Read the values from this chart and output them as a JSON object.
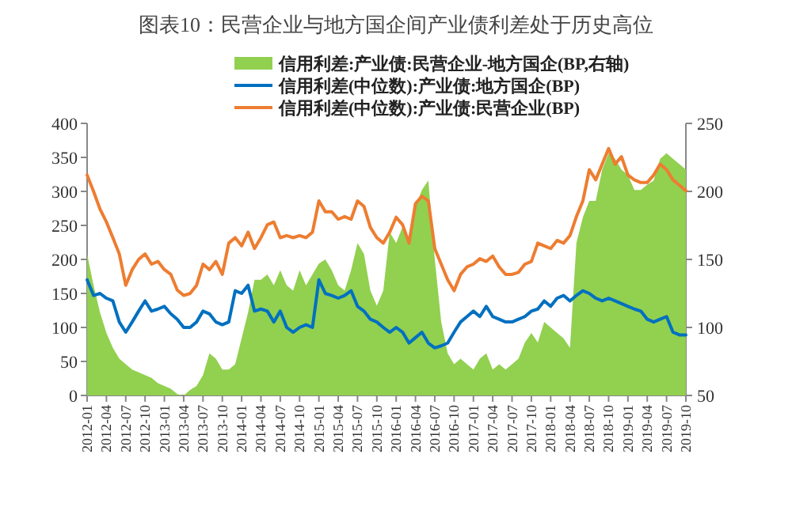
{
  "chart_data": {
    "type": "line",
    "title": "图表10：民营企业与地方国企间产业债利差处于历史高位",
    "categories": [
      "2012-01",
      null,
      null,
      "2012-04",
      null,
      null,
      "2012-07",
      null,
      null,
      "2012-10",
      null,
      null,
      "2013-01",
      null,
      null,
      "2013-04",
      null,
      null,
      "2013-07",
      null,
      null,
      "2013-10",
      null,
      null,
      "2014-01",
      null,
      null,
      "2014-04",
      null,
      null,
      "2014-07",
      null,
      null,
      "2014-10",
      null,
      null,
      "2015-01",
      null,
      null,
      "2015-04",
      null,
      null,
      "2015-07",
      null,
      null,
      "2015-10",
      null,
      null,
      "2016-01",
      null,
      null,
      "2016-04",
      null,
      null,
      "2016-07",
      null,
      null,
      "2016-10",
      null,
      null,
      "2017-01",
      null,
      null,
      "2017-04",
      null,
      null,
      "2017-07",
      null,
      null,
      "2017-10",
      null,
      null,
      "2018-01",
      null,
      null,
      "2018-04",
      null,
      null,
      "2018-07",
      null,
      null,
      "2018-10",
      null,
      null,
      "2019-01",
      null,
      null,
      "2019-04",
      null,
      null,
      "2019-07",
      null,
      null,
      "2019-10"
    ],
    "series": [
      {
        "name": "信用利差:产业债:民营企业-地方国企(BP,右轴)",
        "type": "area",
        "axis": "y2",
        "color": "#92d050",
        "values": [
          154,
          131,
          111,
          96,
          85,
          77,
          73,
          69,
          67,
          65,
          63,
          59,
          57,
          55,
          51,
          50,
          54,
          57,
          65,
          81,
          77,
          69,
          69,
          73,
          92,
          111,
          135,
          135,
          139,
          131,
          142,
          131,
          127,
          142,
          131,
          139,
          147,
          150,
          142,
          131,
          127,
          142,
          162,
          154,
          127,
          116,
          127,
          170,
          162,
          174,
          166,
          189,
          201,
          208,
          150,
          104,
          81,
          73,
          77,
          73,
          69,
          77,
          81,
          69,
          73,
          69,
          73,
          77,
          89,
          96,
          89,
          104,
          100,
          96,
          92,
          85,
          162,
          181,
          193,
          193,
          216,
          228,
          224,
          216,
          212,
          201,
          201,
          205,
          208,
          224,
          228,
          224,
          220,
          216
        ]
      },
      {
        "name": "信用利差(中位数):产业债:地方国企(BP)",
        "color": "#0070c0",
        "values": [
          170,
          147,
          150,
          143,
          139,
          108,
          93,
          108,
          124,
          139,
          124,
          127,
          131,
          120,
          112,
          100,
          100,
          108,
          124,
          120,
          108,
          104,
          108,
          154,
          150,
          162,
          124,
          127,
          124,
          108,
          124,
          100,
          93,
          100,
          104,
          100,
          170,
          150,
          147,
          143,
          147,
          154,
          131,
          124,
          112,
          108,
          100,
          93,
          100,
          93,
          77,
          85,
          93,
          77,
          70,
          73,
          77,
          93,
          108,
          116,
          124,
          116,
          131,
          116,
          112,
          108,
          108,
          112,
          116,
          124,
          127,
          139,
          131,
          143,
          147,
          139,
          147,
          154,
          150,
          143,
          139,
          143,
          139,
          135,
          131,
          127,
          124,
          112,
          108,
          112,
          116,
          93,
          89,
          89
        ]
      },
      {
        "name": "信用利差(中位数):产业债:民营企业(BP)",
        "color": "#ed7d31",
        "values": [
          324,
          300,
          274,
          255,
          232,
          208,
          162,
          185,
          200,
          208,
          193,
          197,
          185,
          178,
          155,
          147,
          150,
          162,
          193,
          185,
          197,
          178,
          224,
          232,
          220,
          240,
          216,
          232,
          251,
          255,
          232,
          235,
          232,
          235,
          232,
          240,
          286,
          270,
          270,
          259,
          263,
          259,
          286,
          278,
          247,
          232,
          224,
          240,
          262,
          251,
          224,
          282,
          293,
          286,
          216,
          193,
          170,
          154,
          178,
          189,
          193,
          201,
          197,
          205,
          189,
          178,
          178,
          181,
          193,
          197,
          224,
          220,
          216,
          228,
          224,
          235,
          263,
          286,
          332,
          317,
          340,
          363,
          340,
          351,
          324,
          317,
          313,
          313,
          324,
          340,
          332,
          317,
          309,
          301
        ]
      }
    ],
    "ylim": [
      0,
      400
    ],
    "yticks": [
      0,
      50,
      100,
      150,
      200,
      250,
      300,
      350,
      400
    ],
    "y2lim": [
      50,
      250
    ],
    "y2ticks": [
      50,
      100,
      150,
      200,
      250
    ],
    "legend": "top",
    "grid": false
  }
}
